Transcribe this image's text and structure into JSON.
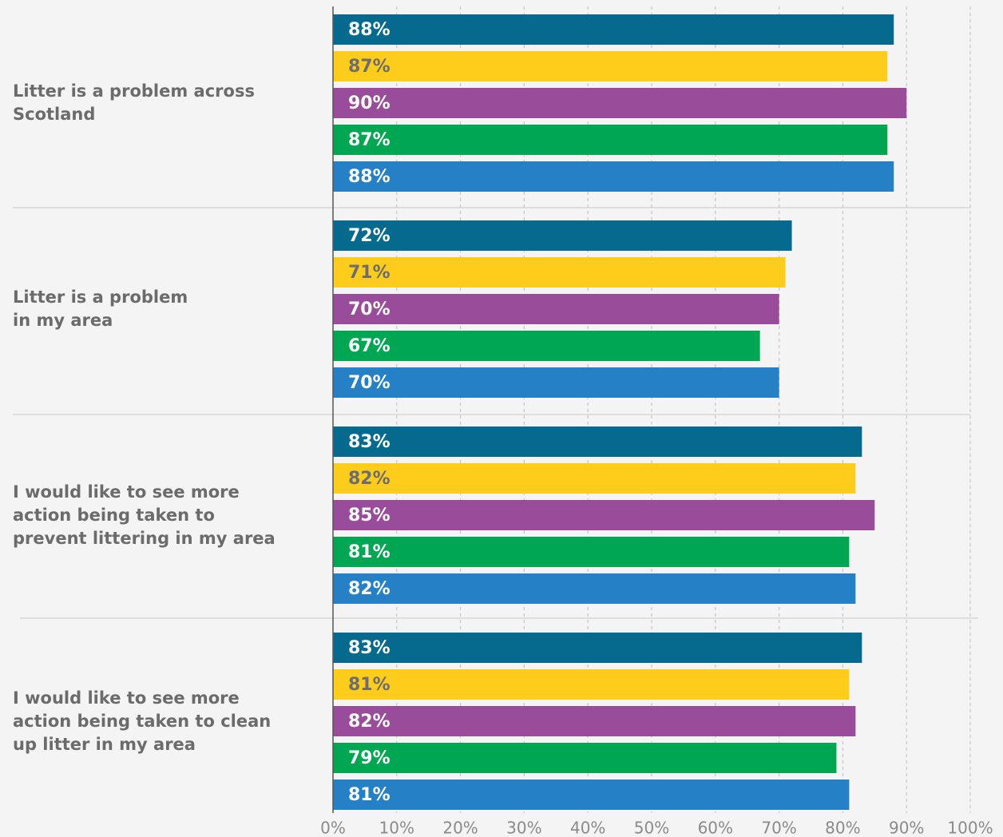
{
  "chart_data": {
    "type": "bar",
    "orientation": "horizontal",
    "categories": [
      "Litter is a problem across\nScotland",
      "Litter is a problem\nin my area",
      "I would like to see more\naction being taken to\nprevent littering in my area",
      "I would like to see more\naction being taken to clean\nup litter in my area"
    ],
    "series": [
      {
        "color": "#066a8f",
        "values": [
          88,
          72,
          83,
          83
        ],
        "value_labels": [
          "88%",
          "72%",
          "83%",
          "83%"
        ]
      },
      {
        "color": "#fecd1c",
        "values": [
          87,
          71,
          82,
          81
        ],
        "value_labels": [
          "87%",
          "71%",
          "82%",
          "81%"
        ]
      },
      {
        "color": "#994c9a",
        "values": [
          90,
          70,
          85,
          82
        ],
        "value_labels": [
          "90%",
          "70%",
          "85%",
          "82%"
        ]
      },
      {
        "color": "#00a651",
        "values": [
          87,
          67,
          81,
          79
        ],
        "value_labels": [
          "87%",
          "67%",
          "81%",
          "79%"
        ]
      },
      {
        "color": "#2680c5",
        "values": [
          88,
          70,
          82,
          81
        ],
        "value_labels": [
          "88%",
          "70%",
          "82%",
          "81%"
        ]
      }
    ],
    "xlim": [
      0,
      100
    ],
    "xticks": [
      {
        "value": 0,
        "label": "0%"
      },
      {
        "value": 10,
        "label": "10%"
      },
      {
        "value": 20,
        "label": "20%"
      },
      {
        "value": 30,
        "label": "30%"
      },
      {
        "value": 40,
        "label": "40%"
      },
      {
        "value": 50,
        "label": "50%"
      },
      {
        "value": 60,
        "label": "60%"
      },
      {
        "value": 70,
        "label": "70%"
      },
      {
        "value": 80,
        "label": "80%"
      },
      {
        "value": 90,
        "label": "90%"
      },
      {
        "value": 100,
        "label": "100%"
      }
    ],
    "grid": true
  }
}
